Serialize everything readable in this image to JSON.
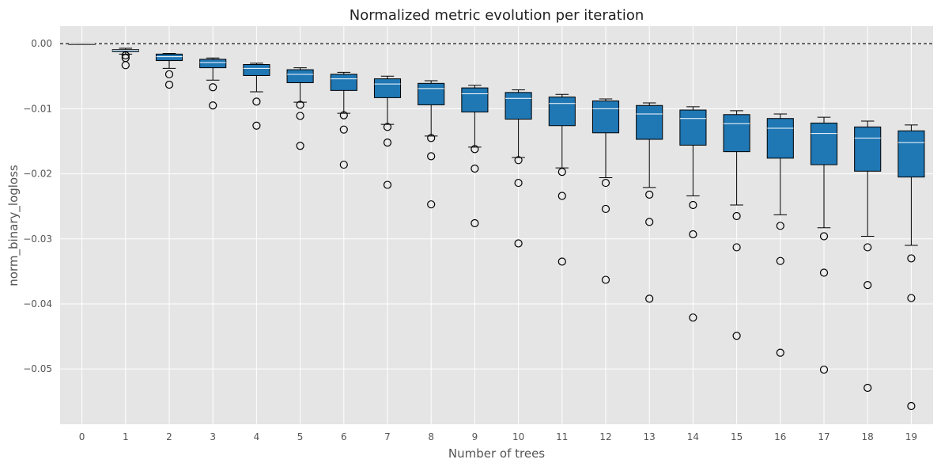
{
  "chart_data": {
    "type": "boxplot",
    "title": "Normalized metric evolution per iteration",
    "xlabel": "Number of trees",
    "ylabel": "norm_binary_logloss",
    "ylim": [
      -0.0585,
      0.0027
    ],
    "yticks": [
      0.0,
      -0.01,
      -0.02,
      -0.03,
      -0.04,
      -0.05
    ],
    "ytick_labels": [
      "0.00",
      "−0.01",
      "−0.02",
      "−0.03",
      "−0.04",
      "−0.05"
    ],
    "categories": [
      "0",
      "1",
      "2",
      "3",
      "4",
      "5",
      "6",
      "7",
      "8",
      "9",
      "10",
      "11",
      "12",
      "13",
      "14",
      "15",
      "16",
      "17",
      "18",
      "19"
    ],
    "reference_line": 0.0,
    "grid": true,
    "box_color": "#1f77b4",
    "median_color": "#ffffff",
    "background_color": "#e5e5e5",
    "boxes": [
      {
        "whisker_high": 0.0,
        "q3": 0.0,
        "median": 0.0,
        "q1": 0.0,
        "whisker_low": 0.0,
        "outliers": []
      },
      {
        "whisker_high": -0.0007,
        "q3": -0.0009,
        "median": -0.001,
        "q1": -0.0012,
        "whisker_low": -0.0016,
        "outliers": [
          -0.0018,
          -0.0022,
          -0.0033
        ]
      },
      {
        "whisker_high": -0.0015,
        "q3": -0.0016,
        "median": -0.002,
        "q1": -0.0026,
        "whisker_low": -0.0038,
        "outliers": [
          -0.0047,
          -0.0063
        ]
      },
      {
        "whisker_high": -0.0022,
        "q3": -0.0024,
        "median": -0.0029,
        "q1": -0.0037,
        "whisker_low": -0.0056,
        "outliers": [
          -0.0067,
          -0.0095
        ]
      },
      {
        "whisker_high": -0.003,
        "q3": -0.0032,
        "median": -0.0038,
        "q1": -0.0049,
        "whisker_low": -0.0074,
        "outliers": [
          -0.0089,
          -0.0126
        ]
      },
      {
        "whisker_high": -0.0037,
        "q3": -0.004,
        "median": -0.0047,
        "q1": -0.006,
        "whisker_low": -0.009,
        "outliers": [
          -0.0094,
          -0.0111,
          -0.0157
        ]
      },
      {
        "whisker_high": -0.0044,
        "q3": -0.0047,
        "median": -0.0054,
        "q1": -0.0072,
        "whisker_low": -0.0107,
        "outliers": [
          -0.011,
          -0.0132,
          -0.0186
        ]
      },
      {
        "whisker_high": -0.005,
        "q3": -0.0054,
        "median": -0.0062,
        "q1": -0.0083,
        "whisker_low": -0.0124,
        "outliers": [
          -0.0128,
          -0.0152,
          -0.0217
        ]
      },
      {
        "whisker_high": -0.0057,
        "q3": -0.0061,
        "median": -0.0069,
        "q1": -0.0094,
        "whisker_low": -0.0142,
        "outliers": [
          -0.0145,
          -0.0173,
          -0.0247
        ]
      },
      {
        "whisker_high": -0.0064,
        "q3": -0.0068,
        "median": -0.0077,
        "q1": -0.0105,
        "whisker_low": -0.0159,
        "outliers": [
          -0.0162,
          -0.0192,
          -0.0276
        ]
      },
      {
        "whisker_high": -0.0071,
        "q3": -0.0075,
        "median": -0.0084,
        "q1": -0.0116,
        "whisker_low": -0.0175,
        "outliers": [
          -0.0179,
          -0.0214,
          -0.0307
        ]
      },
      {
        "whisker_high": -0.0078,
        "q3": -0.0082,
        "median": -0.0092,
        "q1": -0.0126,
        "whisker_low": -0.0191,
        "outliers": [
          -0.0197,
          -0.0234,
          -0.0335
        ]
      },
      {
        "whisker_high": -0.0085,
        "q3": -0.0088,
        "median": -0.01,
        "q1": -0.0137,
        "whisker_low": -0.0206,
        "outliers": [
          -0.0214,
          -0.0254,
          -0.0363
        ]
      },
      {
        "whisker_high": -0.0091,
        "q3": -0.0095,
        "median": -0.0108,
        "q1": -0.0147,
        "whisker_low": -0.0221,
        "outliers": [
          -0.0232,
          -0.0274,
          -0.0392
        ]
      },
      {
        "whisker_high": -0.0097,
        "q3": -0.0102,
        "median": -0.0115,
        "q1": -0.0156,
        "whisker_low": -0.0234,
        "outliers": [
          -0.0248,
          -0.0293,
          -0.0421
        ]
      },
      {
        "whisker_high": -0.0103,
        "q3": -0.0109,
        "median": -0.0123,
        "q1": -0.0166,
        "whisker_low": -0.0248,
        "outliers": [
          -0.0265,
          -0.0313,
          -0.0449
        ]
      },
      {
        "whisker_high": -0.0108,
        "q3": -0.0115,
        "median": -0.013,
        "q1": -0.0176,
        "whisker_low": -0.0263,
        "outliers": [
          -0.028,
          -0.0334,
          -0.0475
        ]
      },
      {
        "whisker_high": -0.0113,
        "q3": -0.0122,
        "median": -0.0138,
        "q1": -0.0186,
        "whisker_low": -0.0283,
        "outliers": [
          -0.0296,
          -0.0352,
          -0.0501
        ]
      },
      {
        "whisker_high": -0.0119,
        "q3": -0.0128,
        "median": -0.0145,
        "q1": -0.0196,
        "whisker_low": -0.0296,
        "outliers": [
          -0.0313,
          -0.0371,
          -0.0529
        ]
      },
      {
        "whisker_high": -0.0125,
        "q3": -0.0134,
        "median": -0.0152,
        "q1": -0.0205,
        "whisker_low": -0.031,
        "outliers": [
          -0.033,
          -0.0391,
          -0.0557
        ]
      }
    ]
  }
}
